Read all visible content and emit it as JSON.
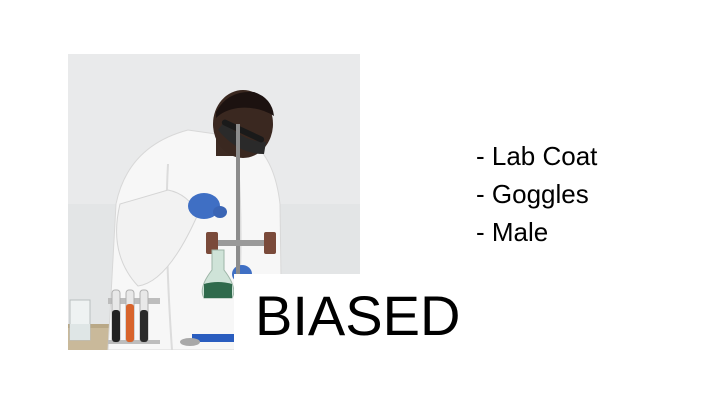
{
  "slide": {
    "label": "BIASED",
    "attributes": [
      "- Lab Coat",
      "- Goggles",
      "- Male"
    ]
  },
  "colors": {
    "background": "#ffffff",
    "text": "#000000"
  }
}
